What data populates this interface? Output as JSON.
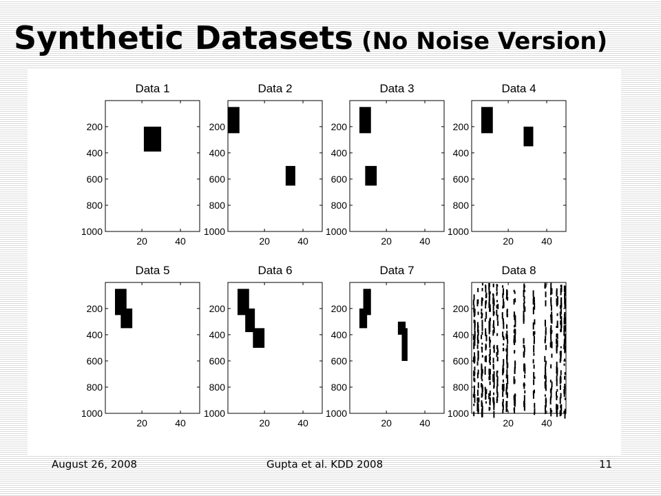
{
  "slide": {
    "title_main": "Synthetic Datasets",
    "title_sub": "(No Noise Version)"
  },
  "footer": {
    "date": "August 26, 2008",
    "citation": "Gupta et al. KDD 2008",
    "page": "11"
  },
  "colors": {
    "mark": "#000000",
    "axes": "#000000",
    "background": "#ffffff"
  },
  "chart_data": [
    {
      "type": "heatmap",
      "title": "Data 1",
      "xlim": [
        1,
        50
      ],
      "ylim": [
        1000,
        1
      ],
      "xticks": [
        20,
        40
      ],
      "yticks": [
        200,
        400,
        600,
        800,
        1000
      ],
      "blocks": [
        {
          "x": [
            21,
            30
          ],
          "y": [
            200,
            390
          ]
        }
      ]
    },
    {
      "type": "heatmap",
      "title": "Data 2",
      "xlim": [
        1,
        50
      ],
      "ylim": [
        1000,
        1
      ],
      "xticks": [
        20,
        40
      ],
      "yticks": [
        200,
        400,
        600,
        800,
        1000
      ],
      "blocks": [
        {
          "x": [
            1,
            7
          ],
          "y": [
            50,
            250
          ]
        },
        {
          "x": [
            31,
            36
          ],
          "y": [
            500,
            650
          ]
        }
      ]
    },
    {
      "type": "heatmap",
      "title": "Data 3",
      "xlim": [
        1,
        50
      ],
      "ylim": [
        1000,
        1
      ],
      "xticks": [
        20,
        40
      ],
      "yticks": [
        200,
        400,
        600,
        800,
        1000
      ],
      "blocks": [
        {
          "x": [
            6,
            12
          ],
          "y": [
            50,
            250
          ]
        },
        {
          "x": [
            9,
            15
          ],
          "y": [
            500,
            650
          ]
        }
      ]
    },
    {
      "type": "heatmap",
      "title": "Data 4",
      "xlim": [
        1,
        50
      ],
      "ylim": [
        1000,
        1
      ],
      "xticks": [
        20,
        40
      ],
      "yticks": [
        200,
        400,
        600,
        800,
        1000
      ],
      "blocks": [
        {
          "x": [
            6,
            12
          ],
          "y": [
            50,
            250
          ]
        },
        {
          "x": [
            28,
            33
          ],
          "y": [
            200,
            350
          ]
        }
      ]
    },
    {
      "type": "heatmap",
      "title": "Data 5",
      "xlim": [
        1,
        50
      ],
      "ylim": [
        1000,
        1
      ],
      "xticks": [
        20,
        40
      ],
      "yticks": [
        200,
        400,
        600,
        800,
        1000
      ],
      "blocks": [
        {
          "x": [
            6,
            12
          ],
          "y": [
            50,
            250
          ]
        },
        {
          "x": [
            9,
            15
          ],
          "y": [
            200,
            350
          ]
        }
      ]
    },
    {
      "type": "heatmap",
      "title": "Data 6",
      "xlim": [
        1,
        50
      ],
      "ylim": [
        1000,
        1
      ],
      "xticks": [
        20,
        40
      ],
      "yticks": [
        200,
        400,
        600,
        800,
        1000
      ],
      "blocks": [
        {
          "x": [
            6,
            12
          ],
          "y": [
            50,
            250
          ]
        },
        {
          "x": [
            10,
            15
          ],
          "y": [
            200,
            380
          ]
        },
        {
          "x": [
            14,
            20
          ],
          "y": [
            350,
            500
          ]
        }
      ]
    },
    {
      "type": "heatmap",
      "title": "Data 7",
      "xlim": [
        1,
        50
      ],
      "ylim": [
        1000,
        1
      ],
      "xticks": [
        20,
        40
      ],
      "yticks": [
        200,
        400,
        600,
        800,
        1000
      ],
      "blocks": [
        {
          "x": [
            6,
            10
          ],
          "y": [
            200,
            350
          ]
        },
        {
          "x": [
            8,
            12
          ],
          "y": [
            50,
            250
          ]
        },
        {
          "x": [
            26,
            30
          ],
          "y": [
            300,
            400
          ]
        },
        {
          "x": [
            28,
            31
          ],
          "y": [
            350,
            600
          ]
        }
      ]
    },
    {
      "type": "heatmap",
      "title": "Data 8",
      "xlim": [
        1,
        50
      ],
      "ylim": [
        1000,
        1
      ],
      "xticks": [
        20,
        40
      ],
      "yticks": [
        200,
        400,
        600,
        800,
        1000
      ],
      "blocks": [],
      "pattern": "scattered short vertical black dashes concentrated in about 14 columns spanning rows 1-1000"
    }
  ]
}
